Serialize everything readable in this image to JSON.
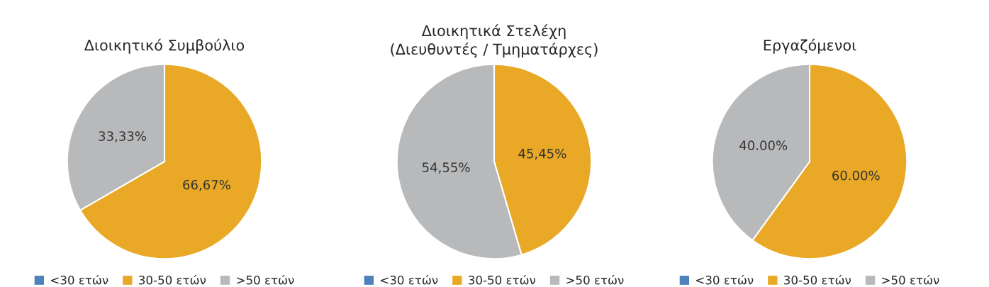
{
  "chart_data": [
    {
      "type": "pie",
      "title": "Διοικητικό Συμβούλιο",
      "categories": [
        "<30 ετών",
        "30-50 ετών",
        ">50 ετών"
      ],
      "values": [
        0,
        66.67,
        33.33
      ],
      "colors": [
        "#4f81bd",
        "#e9a825",
        "#b8b9bb"
      ],
      "value_labels": [
        null,
        "66,67%",
        "33,33%"
      ],
      "legend": "bottom"
    },
    {
      "type": "pie",
      "title": "Διοικητικά Στελέχη\n(Διευθυντές / Τμηματάρχες)",
      "categories": [
        "<30 ετών",
        "30-50 ετών",
        ">50 ετών"
      ],
      "values": [
        0,
        45.45,
        54.55
      ],
      "colors": [
        "#4f81bd",
        "#e9a825",
        "#b8b9bb"
      ],
      "value_labels": [
        null,
        "45,45%",
        "54,55%"
      ],
      "legend": "bottom"
    },
    {
      "type": "pie",
      "title": "Εργαζόμενοι",
      "categories": [
        "<30 ετών",
        "30-50 ετών",
        ">50 ετών"
      ],
      "values": [
        0,
        60.0,
        40.0
      ],
      "colors": [
        "#4f81bd",
        "#e9a825",
        "#b8b9bb"
      ],
      "value_labels": [
        null,
        "60.00%",
        "40.00%"
      ],
      "legend": "bottom"
    }
  ]
}
